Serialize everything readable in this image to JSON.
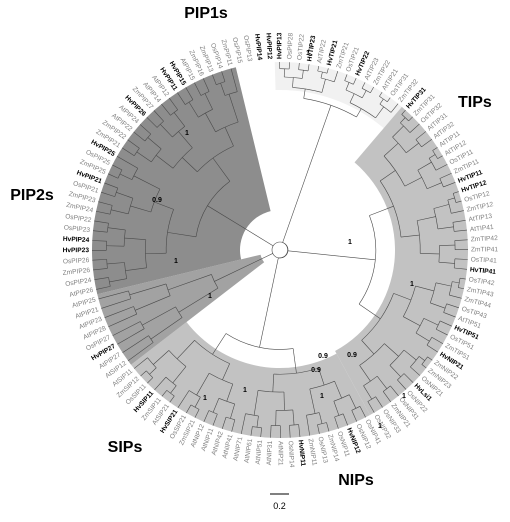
{
  "groups": [
    {
      "id": "pip1",
      "label": "PIP1s",
      "start": 0,
      "end": 14,
      "color": "#f1f1f1"
    },
    {
      "id": "tips",
      "label": "TIPs",
      "start": 14,
      "end": 51,
      "color": "#c2c2c2"
    },
    {
      "id": "nips",
      "label": "NIPs",
      "start": 51,
      "end": 78,
      "color": "#c2c2c2"
    },
    {
      "id": "sips",
      "label": "SIPs",
      "start": 78,
      "end": 86,
      "color": "#a2a2a2"
    },
    {
      "id": "pip2s",
      "label": "PIP2s",
      "start": 86,
      "end": 116,
      "color": "#8d8d8d"
    }
  ],
  "leaves": [
    {
      "n": "HvPIP13",
      "b": true
    },
    {
      "n": "OsPIP28",
      "b": false
    },
    {
      "n": "OsTIP22",
      "b": false
    },
    {
      "n": "HvTIP23",
      "b": true
    },
    {
      "n": "AtTIP22",
      "b": false
    },
    {
      "n": "HvTIP21",
      "b": true
    },
    {
      "n": "ZmTIP21",
      "b": false
    },
    {
      "n": "OsTIP21",
      "b": false
    },
    {
      "n": "HvTIP22",
      "b": true
    },
    {
      "n": "AtTIP23",
      "b": false
    },
    {
      "n": "ZmTIP22",
      "b": false
    },
    {
      "n": "AtTIP21",
      "b": false
    },
    {
      "n": "OsTIP31",
      "b": false
    },
    {
      "n": "ZmTIP32",
      "b": false
    },
    {
      "n": "HvTIP31",
      "b": true
    },
    {
      "n": "ZmTIP31",
      "b": false
    },
    {
      "n": "OsTIP32",
      "b": false
    },
    {
      "n": "AtTIP31",
      "b": false
    },
    {
      "n": "AtTIP32",
      "b": false
    },
    {
      "n": "AtTIP11",
      "b": false
    },
    {
      "n": "AtTIP12",
      "b": false
    },
    {
      "n": "OsTIP11",
      "b": false
    },
    {
      "n": "ZmTIP11",
      "b": false
    },
    {
      "n": "HvTIP11",
      "b": true
    },
    {
      "n": "HvTIP12",
      "b": true
    },
    {
      "n": "OsTIP12",
      "b": false
    },
    {
      "n": "ZmTIP12",
      "b": false
    },
    {
      "n": "AtTIP13",
      "b": false
    },
    {
      "n": "AtTIP41",
      "b": false
    },
    {
      "n": "ZmTIP42",
      "b": false
    },
    {
      "n": "ZmTIP41",
      "b": false
    },
    {
      "n": "OsTIP41",
      "b": false
    },
    {
      "n": "HvTIP41",
      "b": true
    },
    {
      "n": "OsTIP42",
      "b": false
    },
    {
      "n": "ZmTIP43",
      "b": false
    },
    {
      "n": "ZmTIP44",
      "b": false
    },
    {
      "n": "OsTIP43",
      "b": false
    },
    {
      "n": "AtTIP51",
      "b": false
    },
    {
      "n": "HvTIP51",
      "b": true
    },
    {
      "n": "OsTIP51",
      "b": false
    },
    {
      "n": "ZmTIP51",
      "b": false
    },
    {
      "n": "HvNIP21",
      "b": true
    },
    {
      "n": "ZmNIP22",
      "b": false
    },
    {
      "n": "ZmNIP23",
      "b": false
    },
    {
      "n": "OsNIP21",
      "b": false
    },
    {
      "n": "HvLsi1",
      "b": true
    },
    {
      "n": "OsNIP22",
      "b": false
    },
    {
      "n": "OsNIP31",
      "b": false
    },
    {
      "n": "ZmNIP21",
      "b": false
    },
    {
      "n": "OsNIP33",
      "b": false
    },
    {
      "n": "OsNIP32",
      "b": false
    },
    {
      "n": "OsNIP41",
      "b": false
    },
    {
      "n": "OsNIP12",
      "b": false
    },
    {
      "n": "HvNIP12",
      "b": true
    },
    {
      "n": "OsNIP11",
      "b": false
    },
    {
      "n": "ZmNIP14",
      "b": false
    },
    {
      "n": "OsNIP13",
      "b": false
    },
    {
      "n": "ZmNIP11",
      "b": false
    },
    {
      "n": "HvNIP11",
      "b": true
    },
    {
      "n": "OsNIP14",
      "b": false
    },
    {
      "n": "AtNIP21",
      "b": false
    },
    {
      "n": "AtNIP31",
      "b": false
    },
    {
      "n": "AtNIP51",
      "b": false
    },
    {
      "n": "AtNIP61",
      "b": false
    },
    {
      "n": "AtNIP71",
      "b": false
    },
    {
      "n": "AtNIP41",
      "b": false
    },
    {
      "n": "AtNIP42",
      "b": false
    },
    {
      "n": "AtNIP11",
      "b": false
    },
    {
      "n": "AtNIP12",
      "b": false
    },
    {
      "n": "ZmSIP21",
      "b": false
    },
    {
      "n": "OsSIP21",
      "b": false
    },
    {
      "n": "HvSIP21",
      "b": true
    },
    {
      "n": "AtSIP21",
      "b": false
    },
    {
      "n": "ZmSIP11",
      "b": false
    },
    {
      "n": "HvSIP11",
      "b": true
    },
    {
      "n": "OsSIP11",
      "b": false
    },
    {
      "n": "ZmSIP12",
      "b": false
    },
    {
      "n": "AtSIP11",
      "b": false
    },
    {
      "n": "AtSIP12",
      "b": false
    },
    {
      "n": "AtPIP27",
      "b": false
    },
    {
      "n": "HvPIP27",
      "b": true
    },
    {
      "n": "OsPIP27",
      "b": false
    },
    {
      "n": "AtPIP28",
      "b": false
    },
    {
      "n": "AtPIP23",
      "b": false
    },
    {
      "n": "AtPIP21",
      "b": false
    },
    {
      "n": "AtPIP25",
      "b": false
    },
    {
      "n": "AtPIP26",
      "b": false
    },
    {
      "n": "OsPIP24",
      "b": false
    },
    {
      "n": "ZmPIP26",
      "b": false
    },
    {
      "n": "OsPIP26",
      "b": false
    },
    {
      "n": "HvPIP23",
      "b": true
    },
    {
      "n": "HvPIP24",
      "b": true
    },
    {
      "n": "OsPIP23",
      "b": false
    },
    {
      "n": "OsPIP22",
      "b": false
    },
    {
      "n": "ZmPIP24",
      "b": false
    },
    {
      "n": "ZmPIP23",
      "b": false
    },
    {
      "n": "OsPIP21",
      "b": false
    },
    {
      "n": "HvPIP21",
      "b": true
    },
    {
      "n": "ZmPIP25",
      "b": false
    },
    {
      "n": "OsPIP25",
      "b": false
    },
    {
      "n": "HvPIP25",
      "b": true
    },
    {
      "n": "ZmPIP21",
      "b": false
    },
    {
      "n": "ZmPIP22",
      "b": false
    },
    {
      "n": "AtPIP22",
      "b": false
    },
    {
      "n": "AtPIP24",
      "b": false
    },
    {
      "n": "HvPIP26",
      "b": true
    },
    {
      "n": "ZmPIP27",
      "b": false
    },
    {
      "n": "AtPIP14",
      "b": false
    },
    {
      "n": "AtPIP12",
      "b": false
    },
    {
      "n": "HvPIP11",
      "b": true
    },
    {
      "n": "HvPIP15",
      "b": true
    },
    {
      "n": "AtPIP15",
      "b": false
    },
    {
      "n": "ZmPIP16",
      "b": false
    },
    {
      "n": "ZmPIP13",
      "b": false
    },
    {
      "n": "OsPIP14",
      "b": false
    },
    {
      "n": "ZmPIP11",
      "b": false
    },
    {
      "n": "OsPIP15",
      "b": false
    },
    {
      "n": "OsPIP13",
      "b": false
    },
    {
      "n": "HvPIP14",
      "b": true
    },
    {
      "n": "HvPIP12",
      "b": true
    }
  ],
  "bootstrap": [
    {
      "v": "1"
    },
    {
      "v": "1"
    },
    {
      "v": "1"
    },
    {
      "v": "0.9"
    },
    {
      "v": "1"
    },
    {
      "v": "1"
    },
    {
      "v": "1"
    },
    {
      "v": "0.9"
    },
    {
      "v": "0.9"
    },
    {
      "v": "0.9"
    },
    {
      "v": "1"
    },
    {
      "v": "1"
    },
    {
      "v": "1"
    },
    {
      "v": "1"
    },
    {
      "v": "1"
    }
  ],
  "scale_bar": {
    "label": "0.2"
  },
  "colors": {
    "bold_leaf": "#000000",
    "leaf": "#7f7f7f",
    "branch": "#4a4a4a"
  }
}
